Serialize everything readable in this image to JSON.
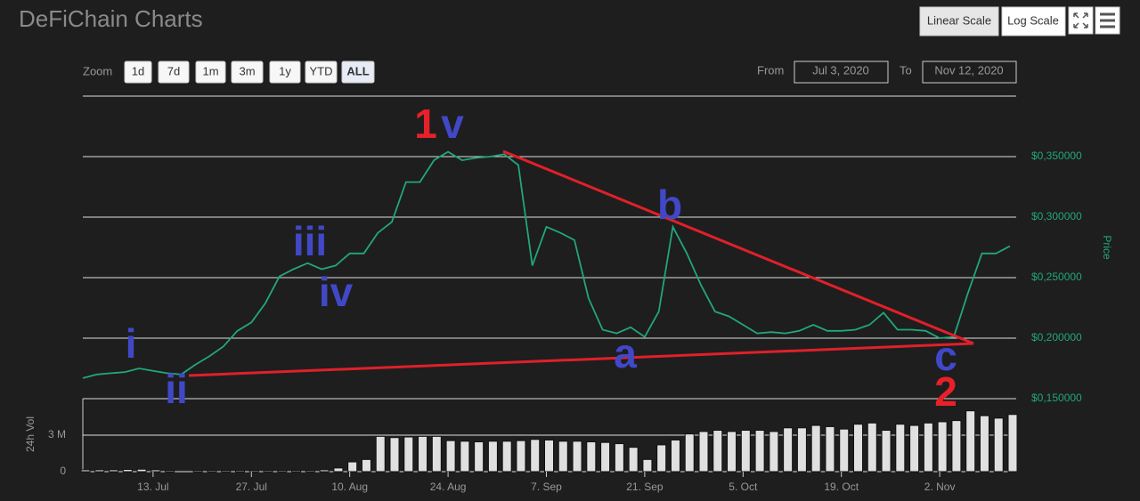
{
  "header": {
    "title": "DeFiChain Charts",
    "buttons": [
      "Linear Scale",
      "Log Scale"
    ]
  },
  "range_selector": {
    "zoom_label": "Zoom",
    "zoom_buttons": [
      "1d",
      "7d",
      "1m",
      "3m",
      "1y",
      "YTD",
      "ALL"
    ],
    "selected": "ALL",
    "from_label": "From",
    "from": "Jul 3, 2020",
    "to_label": "To",
    "to": "Nov 12, 2020"
  },
  "chart_data": [
    {
      "type": "line",
      "y_label": "Price",
      "color": "#22a67a",
      "x": [
        "2020-07-03",
        "2020-07-05",
        "2020-07-07",
        "2020-07-09",
        "2020-07-11",
        "2020-07-13",
        "2020-07-15",
        "2020-07-17",
        "2020-07-19",
        "2020-07-21",
        "2020-07-23",
        "2020-07-25",
        "2020-07-27",
        "2020-07-29",
        "2020-07-31",
        "2020-08-02",
        "2020-08-04",
        "2020-08-06",
        "2020-08-08",
        "2020-08-10",
        "2020-08-12",
        "2020-08-14",
        "2020-08-16",
        "2020-08-18",
        "2020-08-20",
        "2020-08-22",
        "2020-08-24",
        "2020-08-26",
        "2020-08-28",
        "2020-08-30",
        "2020-09-01",
        "2020-09-03",
        "2020-09-05",
        "2020-09-07",
        "2020-09-09",
        "2020-09-11",
        "2020-09-13",
        "2020-09-15",
        "2020-09-17",
        "2020-09-19",
        "2020-09-21",
        "2020-09-23",
        "2020-09-25",
        "2020-09-27",
        "2020-09-29",
        "2020-10-01",
        "2020-10-03",
        "2020-10-05",
        "2020-10-07",
        "2020-10-09",
        "2020-10-11",
        "2020-10-13",
        "2020-10-15",
        "2020-10-17",
        "2020-10-19",
        "2020-10-21",
        "2020-10-23",
        "2020-10-25",
        "2020-10-27",
        "2020-10-29",
        "2020-10-31",
        "2020-11-02",
        "2020-11-04",
        "2020-11-06",
        "2020-11-08",
        "2020-11-10",
        "2020-11-12"
      ],
      "values": [
        0.167,
        0.17,
        0.171,
        0.172,
        0.175,
        0.173,
        0.171,
        0.17,
        0.178,
        0.185,
        0.193,
        0.206,
        0.213,
        0.229,
        0.251,
        0.257,
        0.262,
        0.257,
        0.26,
        0.27,
        0.27,
        0.287,
        0.296,
        0.329,
        0.329,
        0.347,
        0.354,
        0.347,
        0.349,
        0.35,
        0.352,
        0.343,
        0.26,
        0.292,
        0.287,
        0.281,
        0.233,
        0.207,
        0.204,
        0.209,
        0.201,
        0.222,
        0.292,
        0.27,
        0.244,
        0.222,
        0.218,
        0.211,
        0.204,
        0.205,
        0.204,
        0.206,
        0.211,
        0.206,
        0.206,
        0.207,
        0.211,
        0.221,
        0.207,
        0.207,
        0.206,
        0.2,
        0.201,
        0.237,
        0.27,
        0.27,
        0.276
      ],
      "xlim": [
        "2020-07-03",
        "2020-11-12"
      ],
      "ylim": [
        0.15,
        0.4
      ],
      "yticks": [
        {
          "value": 0.15,
          "label": "$0,150000"
        },
        {
          "value": 0.2,
          "label": "$0,200000"
        },
        {
          "value": 0.25,
          "label": "$0,250000"
        },
        {
          "value": 0.3,
          "label": "$0,300000"
        },
        {
          "value": 0.35,
          "label": "$0,350000"
        }
      ],
      "annotations": [
        {
          "text": "1",
          "color": "#e8202a"
        },
        {
          "text": "v",
          "color": "#4148c8"
        },
        {
          "text": "i",
          "color": "#4148c8"
        },
        {
          "text": "ii",
          "color": "#4148c8"
        },
        {
          "text": "iii",
          "color": "#4148c8"
        },
        {
          "text": "iv",
          "color": "#4148c8"
        },
        {
          "text": "a",
          "color": "#4148c8"
        },
        {
          "text": "b",
          "color": "#4148c8"
        },
        {
          "text": "c",
          "color": "#4148c8"
        },
        {
          "text": "2",
          "color": "#e8202a"
        }
      ]
    },
    {
      "type": "bar",
      "y_label": "24h Vol",
      "color": "#e0e0e0",
      "x": [
        "2020-07-03",
        "2020-07-05",
        "2020-07-07",
        "2020-07-09",
        "2020-07-11",
        "2020-07-13",
        "2020-07-15",
        "2020-07-17",
        "2020-07-19",
        "2020-07-21",
        "2020-07-23",
        "2020-07-25",
        "2020-07-27",
        "2020-07-29",
        "2020-07-31",
        "2020-08-02",
        "2020-08-04",
        "2020-08-06",
        "2020-08-08",
        "2020-08-10",
        "2020-08-12",
        "2020-08-14",
        "2020-08-16",
        "2020-08-18",
        "2020-08-20",
        "2020-08-22",
        "2020-08-24",
        "2020-08-26",
        "2020-08-28",
        "2020-08-30",
        "2020-09-01",
        "2020-09-03",
        "2020-09-05",
        "2020-09-07",
        "2020-09-09",
        "2020-09-11",
        "2020-09-13",
        "2020-09-15",
        "2020-09-17",
        "2020-09-19",
        "2020-09-21",
        "2020-09-23",
        "2020-09-25",
        "2020-09-27",
        "2020-09-29",
        "2020-10-01",
        "2020-10-03",
        "2020-10-05",
        "2020-10-07",
        "2020-10-09",
        "2020-10-11",
        "2020-10-13",
        "2020-10-15",
        "2020-10-17",
        "2020-10-19",
        "2020-10-21",
        "2020-10-23",
        "2020-10-25",
        "2020-10-27",
        "2020-10-29",
        "2020-10-31",
        "2020-11-02",
        "2020-11-04",
        "2020-11-06",
        "2020-11-08",
        "2020-11-10",
        "2020-11-12"
      ],
      "values": [
        0.15,
        0.15,
        0.15,
        0.18,
        0.2,
        0.15,
        0.1,
        0,
        0.1,
        0.1,
        0.1,
        0.1,
        0.1,
        0.1,
        0.1,
        0.1,
        0.1,
        0.15,
        0.3,
        0.8,
        1.0,
        2.9,
        2.8,
        2.85,
        2.9,
        2.9,
        2.55,
        2.5,
        2.45,
        2.5,
        2.5,
        2.55,
        2.65,
        2.6,
        2.5,
        2.5,
        2.45,
        2.4,
        2.3,
        2.0,
        1.0,
        2.2,
        2.6,
        3.1,
        3.3,
        3.4,
        3.3,
        3.4,
        3.4,
        3.3,
        3.6,
        3.6,
        3.8,
        3.7,
        3.5,
        3.9,
        4.0,
        3.4,
        3.9,
        3.8,
        4.0,
        4.1,
        4.2,
        5.0,
        4.6,
        4.4,
        4.7
      ],
      "xlim": [
        "2020-07-03",
        "2020-11-12"
      ],
      "ylim": [
        0,
        6
      ],
      "yticks": [
        0,
        {
          "value": 3,
          "label": "3 M"
        }
      ],
      "xticks": [
        {
          "value": "2020-07-13",
          "label": "13. Jul"
        },
        {
          "value": "2020-07-27",
          "label": "27. Jul"
        },
        {
          "value": "2020-08-10",
          "label": "10. Aug"
        },
        {
          "value": "2020-08-24",
          "label": "24. Aug"
        },
        {
          "value": "2020-09-07",
          "label": "7. Sep"
        },
        {
          "value": "2020-09-21",
          "label": "21. Sep"
        },
        {
          "value": "2020-10-05",
          "label": "5. Oct"
        },
        {
          "value": "2020-10-19",
          "label": "19. Oct"
        },
        {
          "value": "2020-11-02",
          "label": "2. Nov"
        }
      ]
    }
  ]
}
